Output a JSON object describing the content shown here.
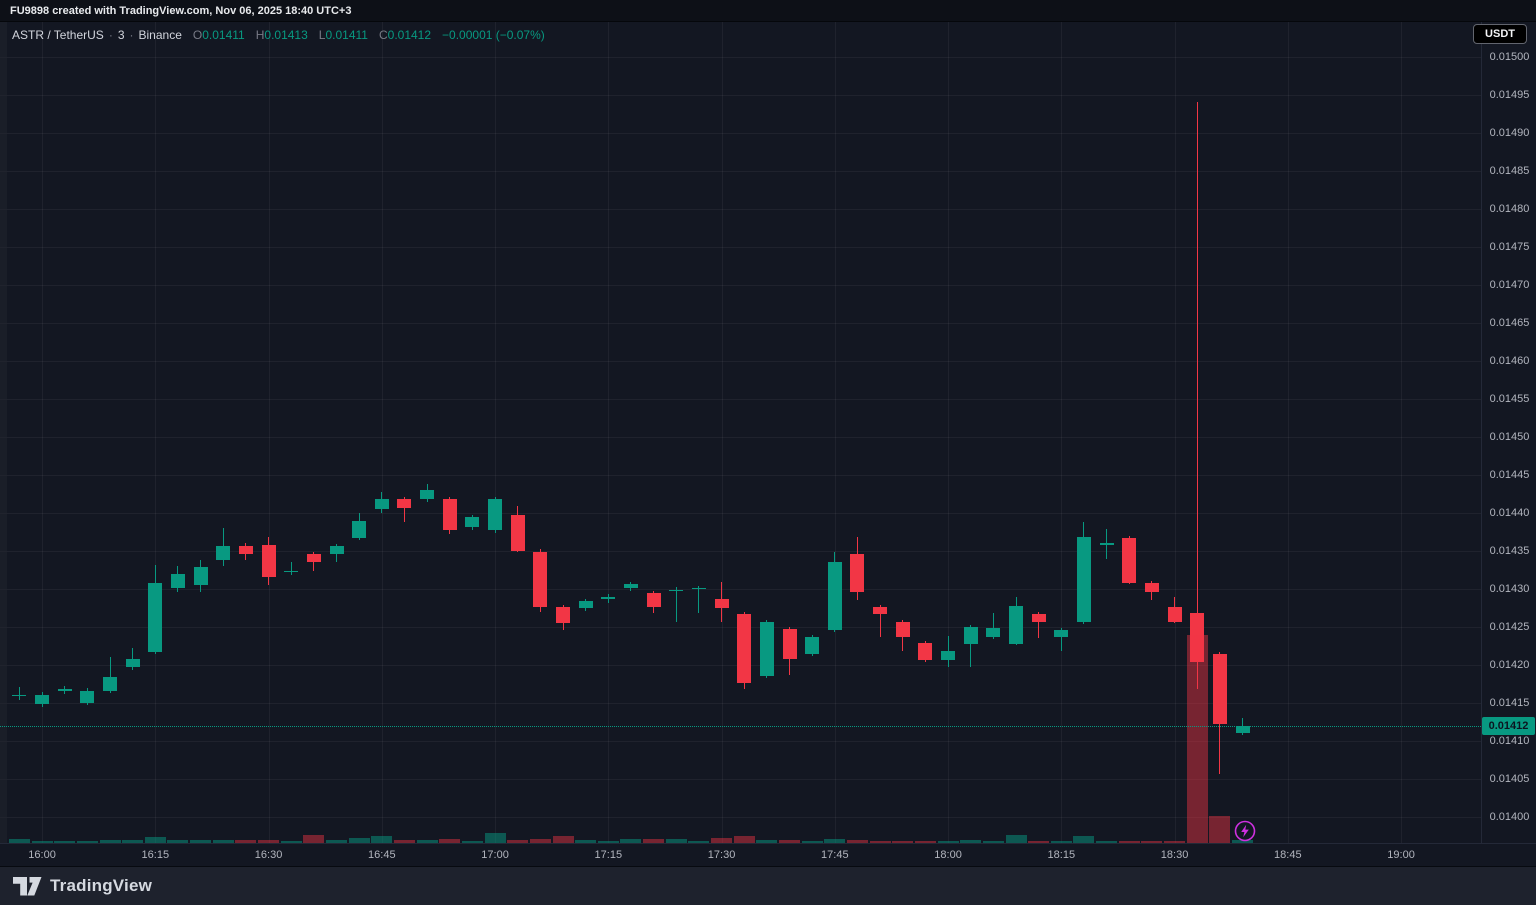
{
  "topbar": {
    "text": "FU9898 created with TradingView.com, Nov 06, 2025 18:40 UTC+3"
  },
  "legend": {
    "symbol": "ASTR / TetherUS",
    "sep1": "·",
    "interval": "3",
    "sep2": "·",
    "exchange": "Binance",
    "items": [
      {
        "k": "O",
        "v": "0.01411"
      },
      {
        "k": "H",
        "v": "0.01413"
      },
      {
        "k": "L",
        "v": "0.01411"
      },
      {
        "k": "C",
        "v": "0.01412"
      }
    ],
    "change": "−0.00001 (−0.07%)"
  },
  "currency_button": "USDT",
  "price_axis": {
    "ticks": [
      "0.01500",
      "0.01495",
      "0.01490",
      "0.01485",
      "0.01480",
      "0.01475",
      "0.01470",
      "0.01465",
      "0.01460",
      "0.01455",
      "0.01450",
      "0.01445",
      "0.01440",
      "0.01435",
      "0.01430",
      "0.01425",
      "0.01420",
      "0.01415",
      "0.01410",
      "0.01405",
      "0.01400"
    ],
    "current": "0.01412"
  },
  "time_axis": {
    "ticks": [
      "16:00",
      "16:15",
      "16:30",
      "16:45",
      "17:00",
      "17:15",
      "17:30",
      "17:45",
      "18:00",
      "18:15",
      "18:30",
      "18:45",
      "19:00"
    ]
  },
  "footer": {
    "brand": "TradingView"
  },
  "colors": {
    "up": "#089981",
    "down": "#f23645",
    "background": "#131722",
    "axis_text": "#b2b5be",
    "current_price_bg": "#089981",
    "flash_icon": "#cf30e0"
  },
  "chart_data": {
    "type": "candlestick",
    "title": "ASTR / TetherUS · 3 · Binance",
    "interval_minutes": 3,
    "exchange": "Binance",
    "quote_currency": "USDT",
    "price_range": [
      0.014,
      0.015
    ],
    "current_price": 0.01412,
    "grid": true,
    "volume_overlay": true,
    "columns": [
      "time",
      "open",
      "high",
      "low",
      "close",
      "volume_rel_px"
    ],
    "candles": [
      [
        "15:57",
        0.01416,
        0.014171,
        0.014154,
        0.014161,
        4
      ],
      [
        "16:00",
        0.014149,
        0.014165,
        0.014145,
        0.014161,
        2
      ],
      [
        "16:03",
        0.014168,
        0.014172,
        0.014162,
        0.014168,
        2
      ],
      [
        "16:06",
        0.01415,
        0.01417,
        0.014147,
        0.014166,
        2
      ],
      [
        "16:09",
        0.014166,
        0.01421,
        0.014163,
        0.014184,
        3
      ],
      [
        "16:12",
        0.014197,
        0.014222,
        0.014194,
        0.014208,
        3
      ],
      [
        "16:15",
        0.014217,
        0.014332,
        0.014214,
        0.014308,
        6
      ],
      [
        "16:18",
        0.014301,
        0.01433,
        0.014296,
        0.01432,
        3
      ],
      [
        "16:21",
        0.014305,
        0.014338,
        0.014296,
        0.014329,
        3
      ],
      [
        "16:24",
        0.014338,
        0.01438,
        0.01433,
        0.014357,
        3
      ],
      [
        "16:27",
        0.014357,
        0.014361,
        0.014338,
        0.014346,
        3
      ],
      [
        "16:30",
        0.014358,
        0.014368,
        0.014305,
        0.014316,
        3
      ],
      [
        "16:33",
        0.014324,
        0.014336,
        0.014318,
        0.014324,
        2
      ],
      [
        "16:36",
        0.014346,
        0.014349,
        0.014324,
        0.014336,
        8
      ],
      [
        "16:39",
        0.014346,
        0.014359,
        0.014336,
        0.014357,
        3
      ],
      [
        "16:42",
        0.014367,
        0.0144,
        0.014364,
        0.01439,
        5
      ],
      [
        "16:45",
        0.014405,
        0.014428,
        0.0144,
        0.014418,
        7
      ],
      [
        "16:48",
        0.014418,
        0.014421,
        0.014388,
        0.014407,
        3
      ],
      [
        "16:51",
        0.014418,
        0.014438,
        0.014415,
        0.01443,
        3
      ],
      [
        "16:54",
        0.014418,
        0.014421,
        0.014372,
        0.014377,
        4
      ],
      [
        "16:57",
        0.014382,
        0.014398,
        0.014378,
        0.014395,
        2
      ],
      [
        "17:00",
        0.014377,
        0.014421,
        0.014374,
        0.014418,
        10
      ],
      [
        "17:03",
        0.014398,
        0.014409,
        0.014349,
        0.01435,
        3
      ],
      [
        "17:06",
        0.014349,
        0.014352,
        0.01427,
        0.014276,
        4
      ],
      [
        "17:09",
        0.014276,
        0.014279,
        0.014246,
        0.014255,
        7
      ],
      [
        "17:12",
        0.014275,
        0.014287,
        0.014271,
        0.014284,
        3
      ],
      [
        "17:15",
        0.014288,
        0.014293,
        0.014281,
        0.014289,
        2
      ],
      [
        "17:18",
        0.014301,
        0.014309,
        0.014297,
        0.014307,
        4
      ],
      [
        "17:21",
        0.014295,
        0.014298,
        0.014269,
        0.014276,
        4
      ],
      [
        "17:24",
        0.014299,
        0.014303,
        0.014257,
        0.014299,
        4
      ],
      [
        "17:27",
        0.0143,
        0.014304,
        0.014269,
        0.014301,
        2
      ],
      [
        "17:30",
        0.014287,
        0.014309,
        0.014256,
        0.014275,
        5
      ],
      [
        "17:33",
        0.014267,
        0.01427,
        0.014169,
        0.014176,
        7
      ],
      [
        "17:36",
        0.014186,
        0.014259,
        0.014183,
        0.014257,
        3
      ],
      [
        "17:39",
        0.014247,
        0.01425,
        0.014187,
        0.014208,
        3
      ],
      [
        "17:42",
        0.014215,
        0.014239,
        0.014212,
        0.014237,
        2
      ],
      [
        "17:45",
        0.014246,
        0.014349,
        0.014243,
        0.014336,
        4
      ],
      [
        "17:48",
        0.014346,
        0.014368,
        0.014286,
        0.014296,
        3
      ],
      [
        "17:51",
        0.014276,
        0.014279,
        0.014237,
        0.014267,
        2
      ],
      [
        "17:54",
        0.014256,
        0.014259,
        0.014219,
        0.014237,
        2
      ],
      [
        "17:57",
        0.014229,
        0.014232,
        0.014204,
        0.014207,
        2
      ],
      [
        "18:00",
        0.014207,
        0.014238,
        0.014197,
        0.014218,
        2
      ],
      [
        "18:03",
        0.014228,
        0.014253,
        0.014198,
        0.01425,
        3
      ],
      [
        "18:06",
        0.014237,
        0.014268,
        0.014234,
        0.014249,
        2
      ],
      [
        "18:09",
        0.014228,
        0.014289,
        0.014226,
        0.014277,
        8
      ],
      [
        "18:12",
        0.014267,
        0.01427,
        0.014235,
        0.014257,
        2
      ],
      [
        "18:15",
        0.014237,
        0.014249,
        0.014219,
        0.014246,
        2
      ],
      [
        "18:18",
        0.014257,
        0.014388,
        0.014254,
        0.014368,
        7
      ],
      [
        "18:21",
        0.014359,
        0.014379,
        0.014339,
        0.01436,
        2
      ],
      [
        "18:24",
        0.014367,
        0.01437,
        0.014306,
        0.014308,
        2
      ],
      [
        "18:27",
        0.014308,
        0.014311,
        0.014285,
        0.014296,
        2
      ],
      [
        "18:30",
        0.014276,
        0.014289,
        0.014255,
        0.014257,
        2
      ],
      [
        "18:33",
        0.014269,
        0.014941,
        0.014168,
        0.014204,
        208
      ],
      [
        "18:36",
        0.014214,
        0.014217,
        0.014057,
        0.014122,
        27
      ],
      [
        "18:39",
        0.01411,
        0.01413,
        0.014108,
        0.01412,
        3
      ]
    ]
  }
}
